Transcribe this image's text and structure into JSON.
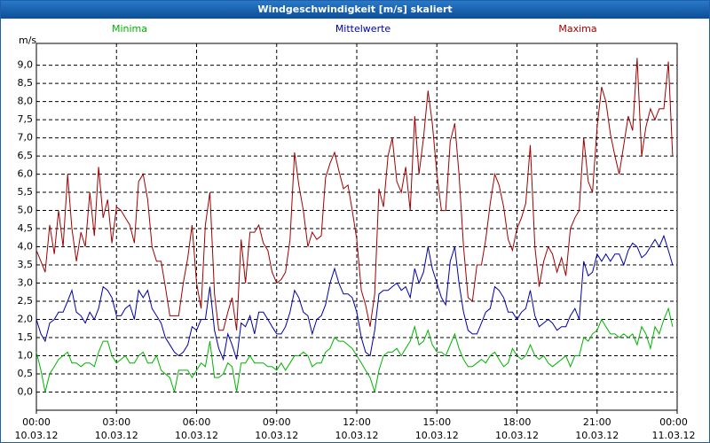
{
  "chart_data": {
    "type": "line",
    "title": "Windgeschwindigkeit [m/s] skaliert",
    "y_label": "m/s",
    "grid": true,
    "x": [
      0,
      0.17,
      0.33,
      0.5,
      0.67,
      0.83,
      1,
      1.17,
      1.33,
      1.5,
      1.67,
      1.83,
      2,
      2.17,
      2.33,
      2.5,
      2.67,
      2.83,
      3,
      3.17,
      3.33,
      3.5,
      3.67,
      3.83,
      4,
      4.17,
      4.33,
      4.5,
      4.67,
      4.83,
      5,
      5.17,
      5.33,
      5.5,
      5.67,
      5.83,
      6,
      6.17,
      6.33,
      6.5,
      6.67,
      6.83,
      7,
      7.17,
      7.33,
      7.5,
      7.67,
      7.83,
      8,
      8.17,
      8.33,
      8.5,
      8.67,
      8.83,
      9,
      9.17,
      9.33,
      9.5,
      9.67,
      9.83,
      10,
      10.17,
      10.33,
      10.5,
      10.67,
      10.83,
      11,
      11.17,
      11.33,
      11.5,
      11.67,
      11.83,
      12,
      12.17,
      12.33,
      12.5,
      12.67,
      12.83,
      13,
      13.17,
      13.33,
      13.5,
      13.67,
      13.83,
      14,
      14.17,
      14.33,
      14.5,
      14.67,
      14.83,
      15,
      15.17,
      15.33,
      15.5,
      15.67,
      15.83,
      16,
      16.17,
      16.33,
      16.5,
      16.67,
      16.83,
      17,
      17.17,
      17.33,
      17.5,
      17.67,
      17.83,
      18,
      18.17,
      18.33,
      18.5,
      18.67,
      18.83,
      19,
      19.17,
      19.33,
      19.5,
      19.67,
      19.83,
      20,
      20.17,
      20.33,
      20.5,
      20.67,
      20.83,
      21,
      21.17,
      21.33,
      21.5,
      21.67,
      21.83,
      22,
      22.17,
      22.33,
      22.5,
      22.67,
      22.83,
      23,
      23.17,
      23.33,
      23.5,
      23.67,
      23.83
    ],
    "series": [
      {
        "name": "Minima",
        "color": "#00b400",
        "values": [
          1.1,
          0.6,
          0.0,
          0.5,
          0.7,
          0.9,
          1.0,
          1.1,
          0.8,
          0.8,
          0.7,
          0.8,
          0.8,
          0.7,
          1.1,
          1.4,
          1.4,
          1.0,
          0.8,
          0.9,
          1.0,
          0.8,
          0.8,
          1.0,
          1.1,
          0.8,
          0.8,
          1.0,
          0.6,
          0.5,
          0.4,
          0.0,
          0.6,
          0.6,
          0.6,
          0.4,
          0.6,
          0.8,
          0.7,
          1.4,
          0.4,
          0.4,
          0.5,
          0.8,
          0.7,
          0.0,
          0.8,
          0.8,
          1.0,
          0.8,
          0.8,
          0.8,
          0.7,
          0.7,
          0.6,
          0.8,
          0.6,
          0.8,
          1.0,
          1.0,
          1.1,
          1.0,
          0.7,
          0.8,
          0.8,
          1.1,
          1.2,
          1.5,
          1.4,
          1.4,
          1.3,
          1.2,
          1.0,
          0.8,
          0.6,
          0.4,
          0.0,
          0.6,
          1.0,
          1.1,
          1.1,
          1.2,
          1.0,
          1.2,
          1.4,
          1.8,
          1.3,
          1.4,
          1.7,
          1.3,
          1.1,
          1.1,
          1.0,
          1.3,
          1.6,
          1.2,
          0.9,
          0.7,
          0.7,
          0.8,
          0.9,
          0.8,
          1.0,
          1.1,
          0.9,
          0.7,
          0.8,
          1.2,
          1.0,
          0.9,
          1.0,
          1.3,
          1.0,
          0.9,
          1.0,
          0.8,
          0.7,
          0.8,
          0.9,
          1.0,
          0.7,
          1.0,
          1.0,
          1.5,
          1.4,
          1.6,
          1.7,
          2.0,
          1.8,
          1.6,
          1.6,
          1.5,
          1.6,
          1.5,
          1.6,
          1.3,
          1.8,
          1.6,
          1.2,
          1.8,
          1.6,
          2.0,
          2.3,
          1.8
        ]
      },
      {
        "name": "Mittelwerte",
        "color": "#0000a8",
        "values": [
          2.0,
          1.6,
          1.4,
          1.9,
          2.0,
          2.2,
          2.2,
          2.5,
          2.8,
          2.2,
          2.1,
          1.9,
          2.2,
          2.0,
          2.3,
          2.9,
          2.8,
          2.6,
          2.1,
          2.1,
          2.3,
          2.4,
          2.0,
          2.8,
          2.6,
          2.8,
          2.3,
          2.1,
          1.9,
          1.5,
          1.3,
          1.1,
          1.0,
          1.1,
          1.3,
          1.8,
          1.7,
          2.0,
          2.0,
          2.9,
          1.7,
          1.2,
          0.9,
          1.6,
          1.3,
          0.9,
          1.9,
          1.8,
          2.1,
          1.6,
          2.2,
          2.2,
          2.0,
          1.8,
          1.6,
          1.6,
          1.8,
          2.2,
          2.8,
          2.6,
          2.2,
          2.1,
          1.6,
          2.0,
          2.1,
          2.4,
          3.0,
          3.4,
          3.0,
          2.7,
          2.7,
          2.6,
          2.2,
          1.5,
          1.1,
          1.0,
          1.7,
          2.7,
          2.8,
          2.8,
          2.9,
          3.0,
          2.8,
          2.9,
          2.6,
          3.4,
          3.0,
          3.3,
          4.0,
          3.4,
          3.0,
          2.6,
          2.4,
          3.6,
          4.0,
          3.0,
          2.2,
          1.7,
          1.6,
          1.6,
          1.9,
          2.2,
          2.3,
          2.9,
          2.8,
          2.6,
          2.2,
          2.2,
          2.0,
          2.2,
          2.3,
          2.8,
          2.1,
          1.8,
          1.9,
          2.0,
          1.9,
          1.7,
          1.8,
          1.8,
          2.1,
          2.3,
          2.0,
          3.6,
          3.2,
          3.3,
          3.8,
          3.6,
          3.8,
          3.6,
          3.8,
          3.8,
          3.5,
          3.9,
          4.1,
          4.0,
          3.7,
          3.8,
          4.0,
          4.2,
          4.0,
          4.3,
          3.9,
          3.5
        ]
      },
      {
        "name": "Maxima",
        "color": "#a00000",
        "values": [
          3.9,
          3.6,
          3.3,
          4.6,
          3.8,
          5.0,
          4.0,
          6.0,
          4.5,
          3.6,
          4.4,
          4.0,
          5.5,
          4.3,
          6.2,
          4.8,
          5.3,
          4.1,
          5.1,
          5.0,
          4.8,
          4.6,
          4.1,
          5.8,
          6.0,
          5.3,
          4.0,
          3.6,
          3.6,
          2.9,
          2.1,
          2.1,
          2.1,
          3.0,
          3.7,
          4.6,
          3.0,
          2.3,
          4.6,
          5.5,
          2.7,
          1.7,
          1.7,
          2.2,
          2.6,
          1.7,
          4.2,
          3.0,
          4.4,
          4.4,
          4.6,
          4.1,
          3.9,
          3.3,
          3.0,
          3.1,
          3.3,
          4.2,
          6.6,
          5.7,
          5.0,
          4.0,
          4.4,
          4.2,
          4.3,
          5.9,
          6.3,
          6.6,
          6.1,
          5.6,
          5.7,
          5.0,
          4.2,
          2.8,
          2.4,
          1.8,
          2.7,
          5.6,
          5.1,
          6.5,
          7.0,
          5.8,
          5.5,
          6.2,
          5.0,
          7.6,
          6.0,
          7.0,
          8.3,
          7.4,
          6.0,
          5.0,
          5.0,
          6.9,
          7.4,
          6.0,
          4.0,
          2.6,
          2.5,
          3.5,
          3.5,
          4.2,
          5.2,
          6.0,
          5.7,
          5.1,
          4.2,
          3.9,
          4.5,
          4.8,
          5.2,
          6.8,
          4.0,
          2.9,
          3.6,
          4.0,
          3.8,
          3.3,
          3.7,
          3.2,
          4.5,
          4.8,
          5.0,
          7.0,
          5.8,
          5.5,
          7.3,
          8.4,
          8.0,
          7.1,
          6.5,
          6.0,
          6.8,
          7.6,
          7.2,
          9.2,
          6.5,
          7.3,
          7.8,
          7.5,
          7.8,
          7.8,
          9.1,
          6.5
        ]
      }
    ],
    "xlim": [
      0,
      24
    ],
    "xticks": [
      {
        "value": 0,
        "label": "00:00",
        "date": "10.03.12"
      },
      {
        "value": 3,
        "label": "03:00",
        "date": "10.03.12"
      },
      {
        "value": 6,
        "label": "06:00",
        "date": "10.03.12"
      },
      {
        "value": 9,
        "label": "09:00",
        "date": "10.03.12"
      },
      {
        "value": 12,
        "label": "12:00",
        "date": "10.03.12"
      },
      {
        "value": 15,
        "label": "15:00",
        "date": "10.03.12"
      },
      {
        "value": 18,
        "label": "18:00",
        "date": "10.03.12"
      },
      {
        "value": 21,
        "label": "21:00",
        "date": "10.03.12"
      },
      {
        "value": 24,
        "label": "00:00",
        "date": "11.03.12"
      }
    ],
    "ylim": [
      -0.5,
      9.6
    ],
    "yticks": [
      {
        "value": 0,
        "label": "0,0"
      },
      {
        "value": 0.5,
        "label": "0,5"
      },
      {
        "value": 1,
        "label": "1,0"
      },
      {
        "value": 1.5,
        "label": "1,5"
      },
      {
        "value": 2,
        "label": "2,0"
      },
      {
        "value": 2.5,
        "label": "2,5"
      },
      {
        "value": 3,
        "label": "3,0"
      },
      {
        "value": 3.5,
        "label": "3,5"
      },
      {
        "value": 4,
        "label": "4,0"
      },
      {
        "value": 4.5,
        "label": "4,5"
      },
      {
        "value": 5,
        "label": "5,0"
      },
      {
        "value": 5.5,
        "label": "5,5"
      },
      {
        "value": 6,
        "label": "6,0"
      },
      {
        "value": 6.5,
        "label": "6,5"
      },
      {
        "value": 7,
        "label": "7,0"
      },
      {
        "value": 7.5,
        "label": "7,5"
      },
      {
        "value": 8,
        "label": "8,0"
      },
      {
        "value": 8.5,
        "label": "8,5"
      },
      {
        "value": 9,
        "label": "9,0"
      }
    ]
  }
}
